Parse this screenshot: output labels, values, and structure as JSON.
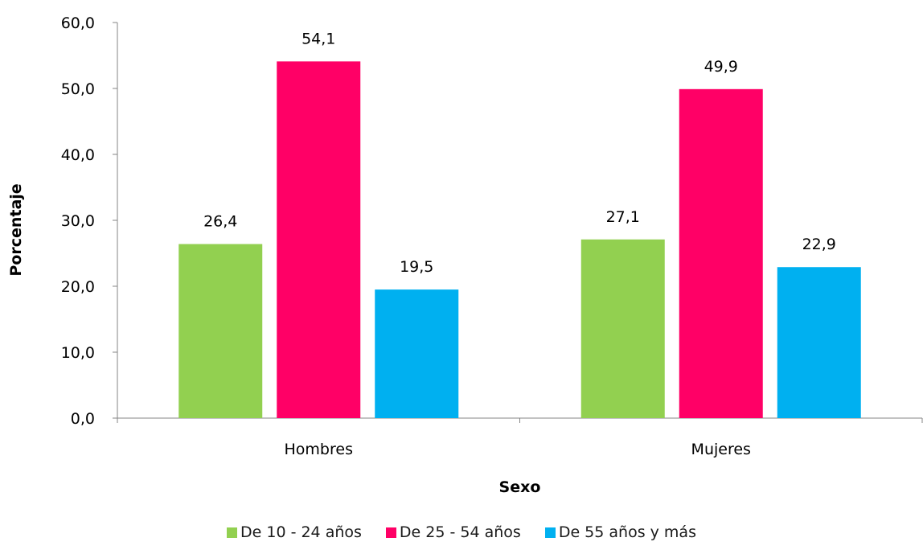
{
  "chart_data": {
    "type": "bar",
    "xlabel": "Sexo",
    "ylabel": "Porcentaje",
    "categories": [
      "Hombres",
      "Mujeres"
    ],
    "series": [
      {
        "name": "De 10 - 24 años",
        "color": "#92d050",
        "values": [
          26.4,
          27.1
        ],
        "labels": [
          "26,4",
          "27,1"
        ]
      },
      {
        "name": "De 25 - 54 años",
        "color": "#ff0066",
        "values": [
          54.1,
          49.9
        ],
        "labels": [
          "54,1",
          "49,9"
        ]
      },
      {
        "name": "De 55 años y más",
        "color": "#00b0f0",
        "values": [
          19.5,
          22.9
        ],
        "labels": [
          "19,5",
          "22,9"
        ]
      }
    ],
    "ylim": [
      0,
      60
    ],
    "yticks": [
      "0,0",
      "10,0",
      "20,0",
      "30,0",
      "40,0",
      "50,0",
      "60,0"
    ],
    "grid": false,
    "legend_position": "bottom"
  }
}
